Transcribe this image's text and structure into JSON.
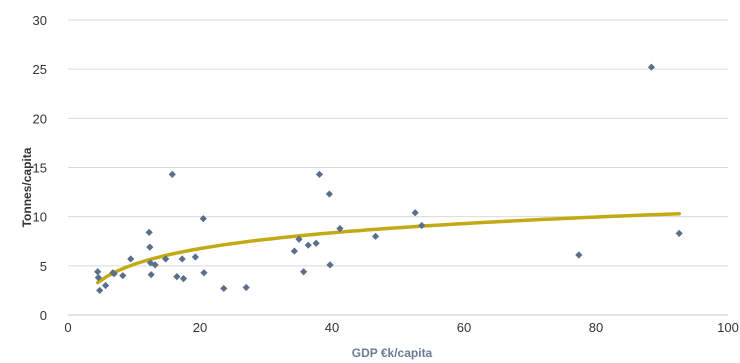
{
  "chart_data": {
    "type": "scatter",
    "title": "",
    "xlabel": "GDP €k/capita",
    "ylabel": "Tonnes/capita",
    "xlim": [
      0,
      100
    ],
    "ylim": [
      0,
      30
    ],
    "x_ticks": [
      0,
      20,
      40,
      60,
      80,
      100
    ],
    "y_ticks": [
      0,
      5,
      10,
      15,
      20,
      25,
      30
    ],
    "grid": "horizontal",
    "marker_color": "#5a6f8c",
    "trend_color": "#c2aa14",
    "series": [
      {
        "values": [
          [
            4.5,
            4.4
          ],
          [
            4.6,
            3.8
          ],
          [
            4.8,
            2.5
          ],
          [
            5.7,
            3.0
          ],
          [
            6.8,
            4.3
          ],
          [
            7.0,
            4.2
          ],
          [
            8.3,
            4.0
          ],
          [
            9.5,
            5.7
          ],
          [
            12.3,
            8.4
          ],
          [
            12.4,
            6.9
          ],
          [
            12.5,
            5.3
          ],
          [
            12.6,
            4.1
          ],
          [
            13.2,
            5.1
          ],
          [
            14.8,
            5.7
          ],
          [
            15.8,
            14.3
          ],
          [
            16.5,
            3.9
          ],
          [
            17.3,
            5.7
          ],
          [
            17.5,
            3.7
          ],
          [
            19.3,
            5.9
          ],
          [
            20.5,
            9.8
          ],
          [
            20.6,
            4.3
          ],
          [
            23.6,
            2.7
          ],
          [
            27.0,
            2.8
          ],
          [
            34.3,
            6.5
          ],
          [
            35.0,
            7.7
          ],
          [
            35.7,
            4.4
          ],
          [
            36.4,
            7.1
          ],
          [
            37.6,
            7.3
          ],
          [
            38.1,
            14.3
          ],
          [
            39.6,
            12.3
          ],
          [
            39.7,
            5.1
          ],
          [
            41.2,
            8.8
          ],
          [
            46.6,
            8.0
          ],
          [
            52.6,
            10.4
          ],
          [
            53.6,
            9.1
          ],
          [
            77.4,
            6.1
          ],
          [
            88.4,
            25.2
          ],
          [
            92.6,
            8.3
          ]
        ]
      }
    ],
    "trendline": {
      "type": "logarithmic",
      "x_range": [
        4.5,
        92.6
      ],
      "y_range": [
        3.3,
        10.3
      ]
    }
  }
}
